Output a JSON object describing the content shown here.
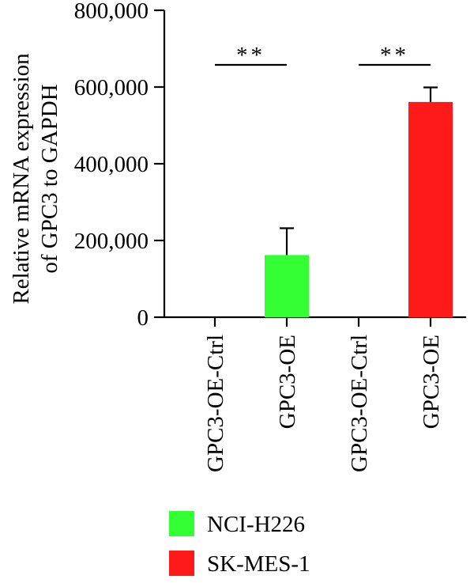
{
  "chart_data": {
    "type": "bar",
    "title": "",
    "xlabel": "",
    "ylabel": "Relative mRNA expression of GPC3 to GAPDH",
    "ylabel_lines": [
      "Relative mRNA expression",
      "of GPC3 to GAPDH"
    ],
    "ylim": [
      0,
      800000
    ],
    "yticks": [
      0,
      200000,
      400000,
      600000,
      800000
    ],
    "ytick_labels": [
      "0",
      "200,000",
      "400,000",
      "600,000",
      "800,000"
    ],
    "categories": [
      "GPC3-OE-Ctrl",
      "GPC3-OE",
      "GPC3-OE-Ctrl",
      "GPC3-OE"
    ],
    "bars": [
      {
        "category": "GPC3-OE-Ctrl",
        "group": "NCI-H226",
        "value": 0,
        "error": 0
      },
      {
        "category": "GPC3-OE",
        "group": "NCI-H226",
        "value": 162000,
        "error": 70000
      },
      {
        "category": "GPC3-OE-Ctrl",
        "group": "SK-MES-1",
        "value": 0,
        "error": 0
      },
      {
        "category": "GPC3-OE",
        "group": "SK-MES-1",
        "value": 561000,
        "error": 38000
      }
    ],
    "series": [
      {
        "name": "NCI-H226",
        "color": "#33ff33"
      },
      {
        "name": "SK-MES-1",
        "color": "#ff1a1a"
      }
    ],
    "significance": [
      {
        "from": 0,
        "to": 1,
        "label": "**"
      },
      {
        "from": 2,
        "to": 3,
        "label": "**"
      }
    ],
    "legend_position": "bottom",
    "grid": false
  }
}
